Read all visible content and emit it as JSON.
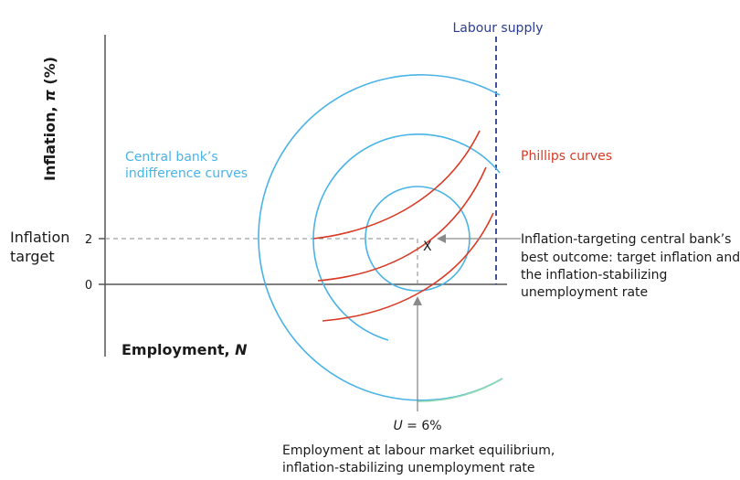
{
  "colors": {
    "indifference": "#4ab3e6",
    "indifference_tail": "#8fd9b0",
    "phillips": "#d93a26",
    "labour_supply": "#2b3d91",
    "axis": "#555555",
    "guide": "#8a8a8a",
    "text": "#1a1a1a"
  },
  "axes": {
    "y_label_main": "Inflation, ",
    "y_label_pi": "π",
    "y_label_unit": " (%)",
    "x_label_main": "Employment, ",
    "x_label_var": "N",
    "tick_2": "2",
    "tick_0": "0",
    "inflation_target_line1": "Inflation",
    "inflation_target_line2": "target"
  },
  "labels": {
    "labour_supply": "Labour supply",
    "indifference_line1": "Central bank’s",
    "indifference_line2": "indifference curves",
    "phillips": "Phillips curves",
    "point_x": "X",
    "u_var": "U",
    "u_value": " = 6%",
    "best_outcome_line1": "Inflation-targeting central bank’s",
    "best_outcome_line2": "best outcome: target inflation and",
    "best_outcome_line3": "the inflation-stabilizing",
    "best_outcome_line4": "unemployment rate",
    "equilibrium_line1": "Employment at labour market equilibrium,",
    "equilibrium_line2": "inflation-stabilizing unemployment rate"
  }
}
